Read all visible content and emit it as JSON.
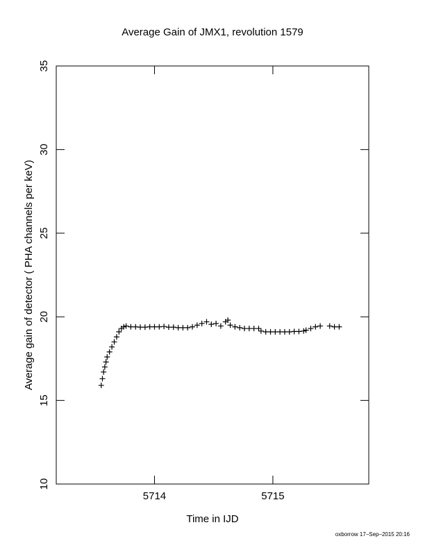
{
  "chart_data": {
    "type": "scatter",
    "title": "Average Gain of JMX1, revolution 1579",
    "x_label": "Time in IJD",
    "y_label": "Average gain of detector ( PHA channels per keV)",
    "footer": "oxborrow 17–Sep–2015 20:16",
    "marker": "plus",
    "color": "#000000",
    "xlim": [
      5713.17,
      5715.81
    ],
    "xticks": [
      5714,
      5715
    ],
    "ylim": [
      10,
      35
    ],
    "yticks": [
      10,
      15,
      20,
      25,
      30,
      35
    ],
    "x": [
      5713.55,
      5713.56,
      5713.57,
      5713.58,
      5713.59,
      5713.6,
      5713.62,
      5713.64,
      5713.66,
      5713.68,
      5713.7,
      5713.72,
      5713.74,
      5713.76,
      5713.8,
      5713.84,
      5713.88,
      5713.92,
      5713.96,
      5714.0,
      5714.04,
      5714.08,
      5714.12,
      5714.16,
      5714.2,
      5714.24,
      5714.28,
      5714.32,
      5714.36,
      5714.4,
      5714.44,
      5714.48,
      5714.52,
      5714.56,
      5714.6,
      5714.62,
      5714.64,
      5714.68,
      5714.72,
      5714.76,
      5714.8,
      5714.84,
      5714.88,
      5714.9,
      5714.94,
      5714.98,
      5715.02,
      5715.06,
      5715.1,
      5715.14,
      5715.18,
      5715.22,
      5715.26,
      5715.28,
      5715.32,
      5715.36,
      5715.4,
      5715.48,
      5715.52,
      5715.56
    ],
    "values": [
      15.9,
      16.3,
      16.7,
      17.0,
      17.3,
      17.6,
      17.9,
      18.2,
      18.5,
      18.8,
      19.1,
      19.3,
      19.4,
      19.45,
      19.4,
      19.4,
      19.38,
      19.38,
      19.4,
      19.4,
      19.4,
      19.42,
      19.38,
      19.38,
      19.35,
      19.35,
      19.35,
      19.4,
      19.5,
      19.6,
      19.7,
      19.55,
      19.6,
      19.45,
      19.7,
      19.8,
      19.5,
      19.4,
      19.35,
      19.3,
      19.3,
      19.3,
      19.3,
      19.15,
      19.1,
      19.1,
      19.1,
      19.1,
      19.1,
      19.1,
      19.12,
      19.12,
      19.15,
      19.2,
      19.3,
      19.4,
      19.45,
      19.45,
      19.4,
      19.4
    ]
  }
}
